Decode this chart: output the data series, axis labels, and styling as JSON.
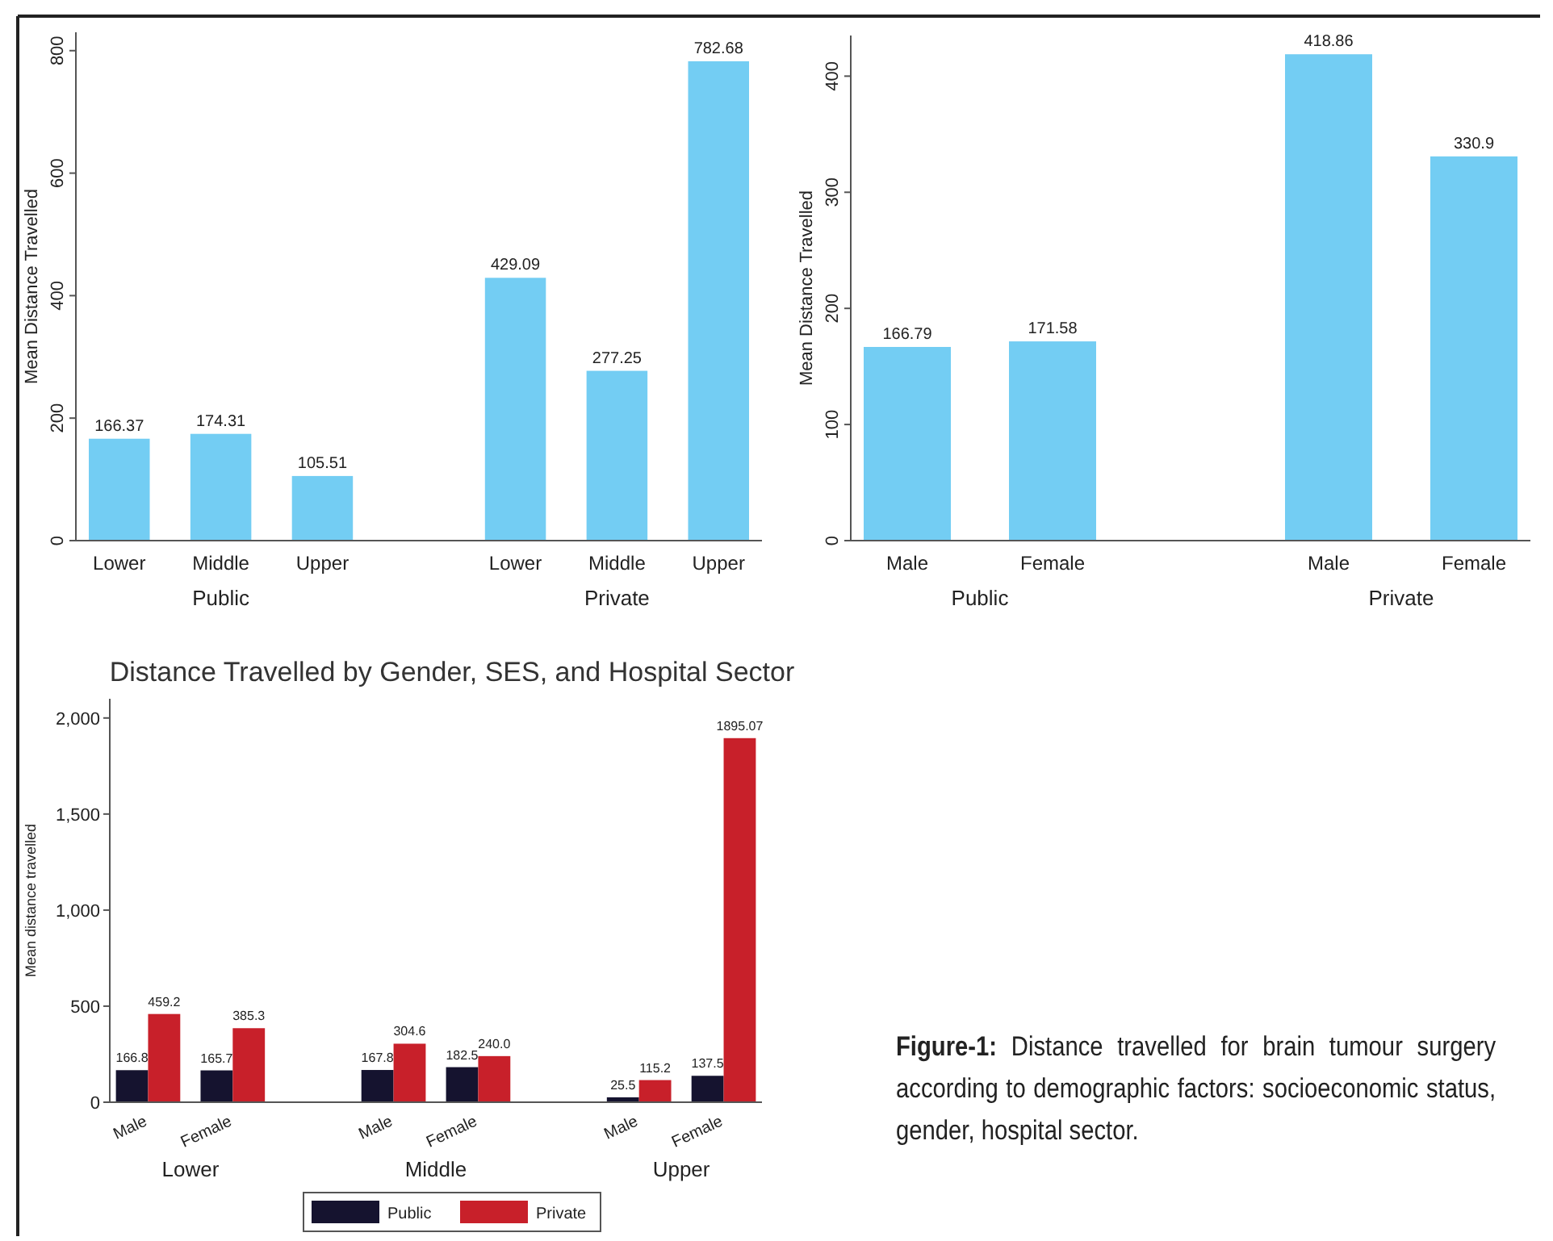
{
  "chart_data": [
    {
      "type": "bar",
      "ylabel": "Mean Distance Travelled",
      "categories": [
        "Lower",
        "Middle",
        "Upper",
        "Lower",
        "Middle",
        "Upper"
      ],
      "values": [
        166.37,
        174.31,
        105.51,
        429.09,
        277.25,
        782.68
      ],
      "color": "#73cdf3",
      "data_labels": true,
      "ylim": [
        0,
        830
      ],
      "yticks": [
        0,
        200,
        400,
        600,
        800
      ],
      "annotations": [
        "Public",
        "Private"
      ],
      "grid": false,
      "legend": false
    },
    {
      "type": "bar",
      "ylabel": "Mean Distance Travelled",
      "categories": [
        "Male",
        "Female",
        "Male",
        "Female"
      ],
      "values": [
        166.79,
        171.58,
        418.86,
        330.9
      ],
      "color": "#73cdf3",
      "data_labels": true,
      "ylim": [
        0,
        435
      ],
      "yticks": [
        0,
        100,
        200,
        300,
        400
      ],
      "annotations": [
        "Public",
        "Private"
      ],
      "grid": false,
      "legend": false
    },
    {
      "type": "bar",
      "title": "Distance Travelled by Gender, SES, and Hospital Sector",
      "ylabel": "Mean distance travelled",
      "categories": [
        "Male",
        "Female",
        "Male",
        "Female",
        "Male",
        "Female"
      ],
      "series": [
        {
          "name": "Public",
          "color": "#15132f",
          "values": [
            166.8,
            165.7,
            167.8,
            182.5,
            25.5,
            137.5
          ],
          "value_labels": [
            "166.8",
            "165.7",
            "167.8",
            "182.5",
            "25.5",
            "137.5"
          ]
        },
        {
          "name": "Private",
          "color": "#c8202a",
          "values": [
            459.2,
            385.3,
            304.6,
            240.0,
            115.2,
            1895.07
          ],
          "value_labels": [
            "459.2",
            "385.3",
            "304.6",
            "240.0",
            "115.2",
            "1895.07"
          ]
        }
      ],
      "ylim": [
        0,
        2100
      ],
      "yticks": [
        0,
        {
          "value": 500,
          "label": "500"
        },
        {
          "value": 1000,
          "label": "1,000"
        },
        {
          "value": 1500,
          "label": "1,500"
        },
        {
          "value": 2000,
          "label": "2,000"
        }
      ],
      "annotations": [
        "Lower",
        "Middle",
        "Upper"
      ],
      "grid": false,
      "legend": "bottom"
    },
    {
      "type": "other",
      "title": "Figure-1:",
      "annotations": [
        "Distance travelled for brain tumour surgery according to demographic factors: socioeconomic status, gender, hospital sector."
      ]
    }
  ]
}
